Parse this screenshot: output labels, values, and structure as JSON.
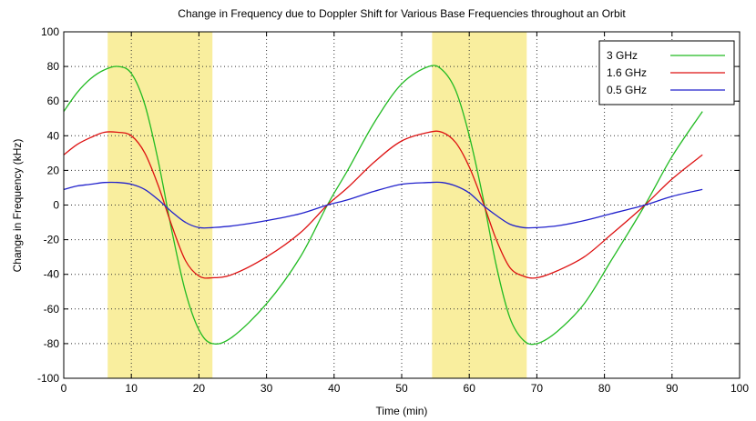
{
  "chart_data": {
    "type": "line",
    "title": "Change in Frequency due to Doppler Shift for Various Base Frequencies throughout an Orbit",
    "xlabel": "Time (min)",
    "ylabel": "Change in Frequency (kHz)",
    "xlim": [
      0,
      100
    ],
    "ylim": [
      -100,
      100
    ],
    "xticks": [
      "0",
      "10",
      "20",
      "30",
      "40",
      "50",
      "60",
      "70",
      "80",
      "90",
      "100"
    ],
    "yticks": [
      "100",
      "80",
      "60",
      "40",
      "20",
      "0",
      "-20",
      "-40",
      "-60",
      "-80",
      "-100"
    ],
    "grid": true,
    "legend_position": "top-right",
    "highlight_bands": [
      {
        "x_start": 6.5,
        "x_end": 22,
        "color": "#f9ee9e"
      },
      {
        "x_start": 54.5,
        "x_end": 68.5,
        "color": "#f9ee9e"
      }
    ],
    "series": [
      {
        "name": "3 GHz",
        "color": "#22bb22",
        "x": [
          0,
          2,
          4,
          6,
          8,
          10,
          12,
          14,
          16,
          18,
          20,
          22,
          25,
          30,
          35,
          39,
          42,
          46,
          50,
          54,
          56,
          58,
          60,
          62,
          64,
          66,
          68,
          70,
          73,
          77,
          81,
          86,
          90,
          94.5
        ],
        "y": [
          54,
          65,
          73,
          78,
          80,
          76,
          58,
          25,
          -15,
          -50,
          -72,
          -80,
          -76,
          -57,
          -30,
          0,
          20,
          48,
          70,
          80,
          78,
          66,
          40,
          5,
          -35,
          -65,
          -78,
          -80,
          -73,
          -57,
          -32,
          0,
          28,
          54
        ]
      },
      {
        "name": "1.6 GHz",
        "color": "#dd1111",
        "x": [
          0,
          2,
          4,
          6,
          8,
          10,
          12,
          14,
          16,
          18,
          20,
          22,
          25,
          30,
          35,
          39,
          42,
          46,
          50,
          54,
          56,
          58,
          60,
          62,
          64,
          66,
          68,
          70,
          73,
          77,
          81,
          86,
          90,
          94.5
        ],
        "y": [
          29,
          35,
          39,
          42,
          42,
          40,
          30,
          11,
          -12,
          -32,
          -41,
          -42,
          -40,
          -30,
          -16,
          0,
          10,
          25,
          37,
          42,
          42,
          36,
          22,
          2,
          -20,
          -36,
          -41,
          -42,
          -38,
          -30,
          -17,
          0,
          15,
          29
        ]
      },
      {
        "name": "0.5 GHz",
        "color": "#2222cc",
        "x": [
          0,
          2,
          4,
          6,
          8,
          10,
          12,
          14,
          16,
          18,
          20,
          22,
          25,
          30,
          35,
          39,
          42,
          46,
          50,
          54,
          56,
          58,
          60,
          62,
          64,
          66,
          68,
          70,
          73,
          77,
          81,
          86,
          90,
          94.5
        ],
        "y": [
          9,
          11,
          12,
          13,
          13,
          12,
          9,
          3,
          -4,
          -10,
          -13,
          -13,
          -12,
          -9,
          -5,
          0,
          3,
          8,
          12,
          13,
          13,
          11,
          7,
          0,
          -6,
          -11,
          -13,
          -13,
          -12,
          -9,
          -5,
          0,
          5,
          9
        ]
      }
    ]
  }
}
